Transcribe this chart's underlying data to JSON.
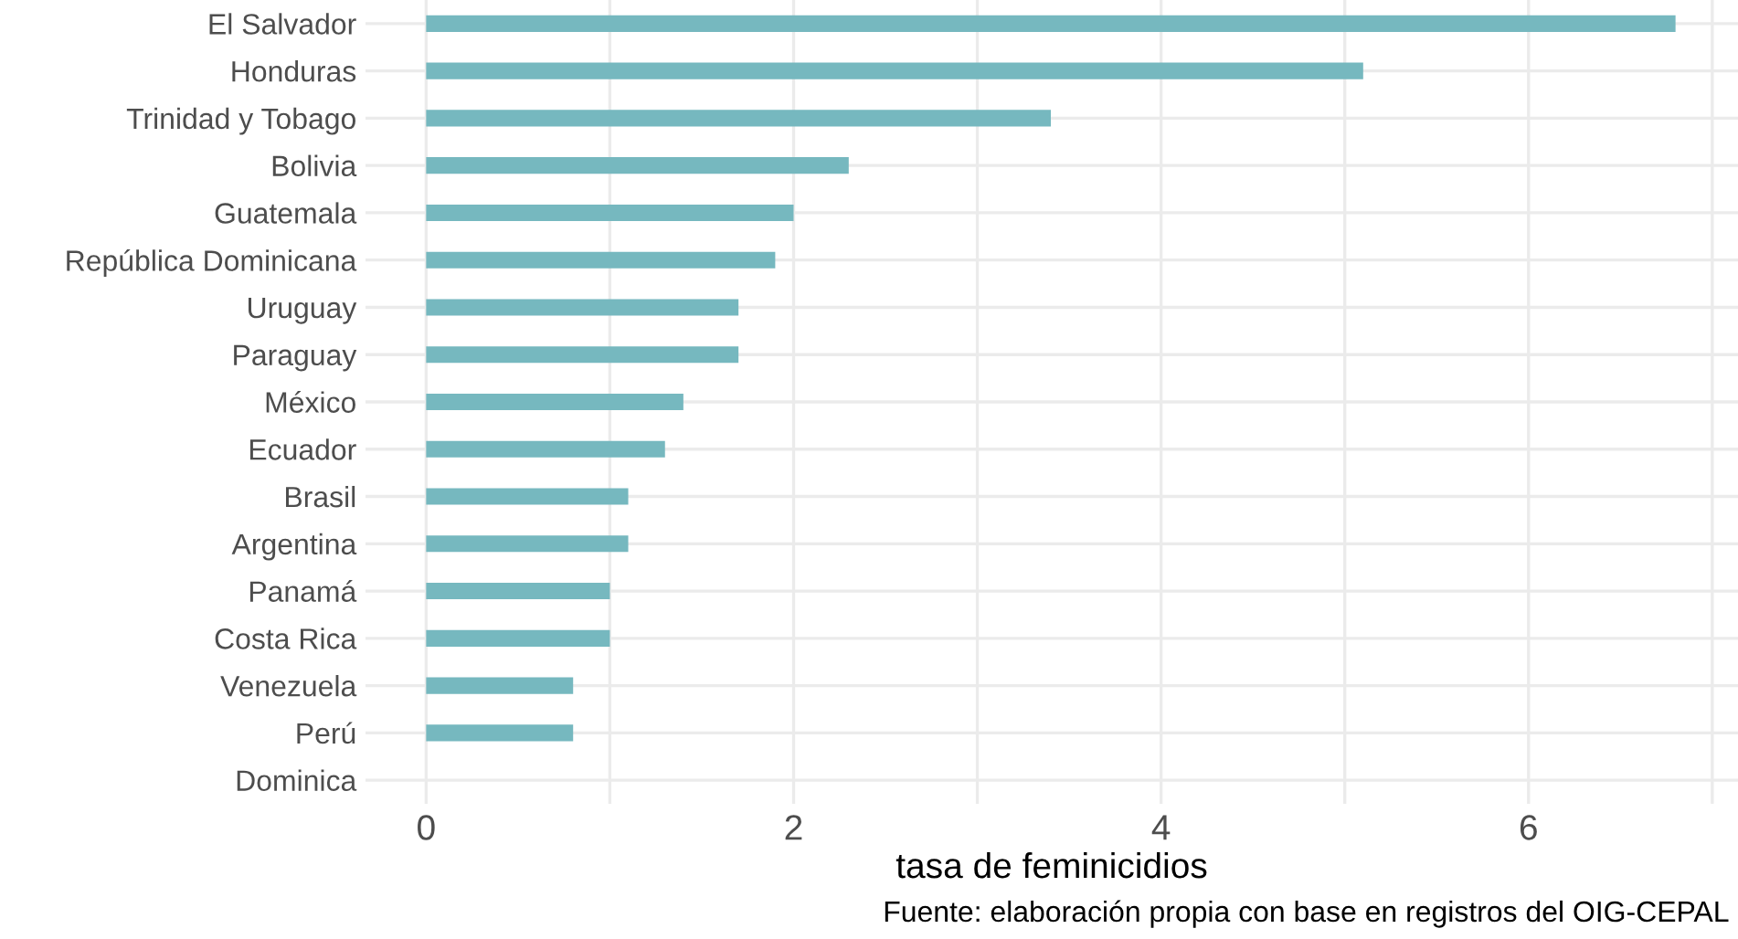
{
  "chart_data": {
    "type": "bar",
    "orientation": "horizontal",
    "xlabel": "tasa de feminicidios",
    "categories": [
      "El Salvador",
      "Honduras",
      "Trinidad y Tobago",
      "Bolivia",
      "Guatemala",
      "República Dominicana",
      "Uruguay",
      "Paraguay",
      "México",
      "Ecuador",
      "Brasil",
      "Argentina",
      "Panamá",
      "Costa Rica",
      "Venezuela",
      "Perú",
      "Dominica"
    ],
    "values": [
      6.8,
      5.1,
      3.4,
      2.3,
      2.0,
      1.9,
      1.7,
      1.7,
      1.4,
      1.3,
      1.1,
      1.1,
      1.0,
      1.0,
      0.8,
      0.8,
      0
    ],
    "color": "#76b8bf",
    "xlim": [
      -0.33,
      7.14
    ],
    "xticks": [
      0,
      {
        "value": 1,
        "label": null
      },
      2,
      {
        "value": 3,
        "label": null
      },
      4,
      {
        "value": 5,
        "label": null
      },
      6,
      {
        "value": 7,
        "label": null
      }
    ],
    "grid": true,
    "annotations": [
      "Fuente: elaboración propia con base en registros del OIG-CEPAL"
    ]
  }
}
